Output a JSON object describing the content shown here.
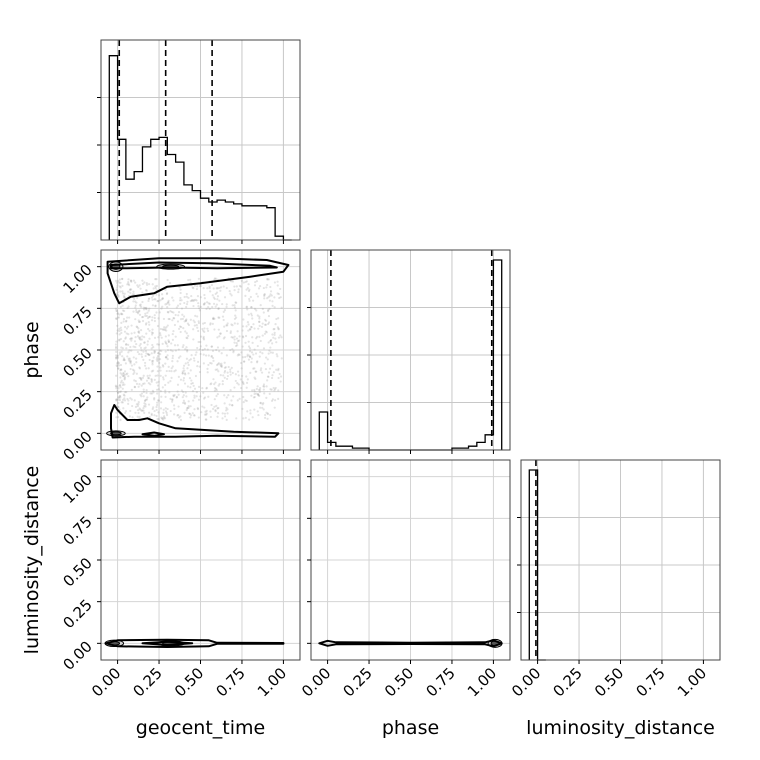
{
  "chart_data": {
    "type": "corner",
    "parameters": [
      "geocent_time",
      "phase",
      "luminosity_distance"
    ],
    "axis_labels": {
      "geocent_time": "geocent_time",
      "phase": "phase",
      "luminosity_distance": "luminosity_distance"
    },
    "range": [
      -0.1,
      1.1
    ],
    "tick_values": [
      0.0,
      0.25,
      0.5,
      0.75,
      1.0
    ],
    "tick_labels": [
      "0.00",
      "0.25",
      "0.50",
      "0.75",
      "1.00"
    ],
    "grid": true,
    "line_color": "#000000",
    "scatter_color": "#9e9e9e",
    "contour_fill_colors": [
      "#ededed",
      "#cfcfcf",
      "#a8a8a8",
      "#555555"
    ],
    "marginals": {
      "geocent_time": {
        "bin_edges": [
          -0.05,
          0.0,
          0.05,
          0.1,
          0.15,
          0.2,
          0.25,
          0.3,
          0.35,
          0.4,
          0.45,
          0.5,
          0.55,
          0.6,
          0.65,
          0.7,
          0.75,
          0.8,
          0.85,
          0.9,
          0.95,
          1.0,
          1.05
        ],
        "counts": [
          0.97,
          0.53,
          0.32,
          0.36,
          0.49,
          0.53,
          0.54,
          0.45,
          0.41,
          0.29,
          0.26,
          0.22,
          0.2,
          0.21,
          0.2,
          0.19,
          0.18,
          0.18,
          0.18,
          0.17,
          0.02,
          0.0
        ],
        "ylim": [
          0,
          1.0
        ],
        "quantiles": [
          0.01,
          0.29,
          0.57
        ]
      },
      "phase": {
        "bin_edges": [
          -0.05,
          0.0,
          0.05,
          0.1,
          0.15,
          0.2,
          0.25,
          0.3,
          0.35,
          0.4,
          0.45,
          0.5,
          0.55,
          0.6,
          0.65,
          0.7,
          0.75,
          0.8,
          0.85,
          0.9,
          0.95,
          1.0,
          1.05
        ],
        "counts": [
          0.2,
          0.04,
          0.02,
          0.02,
          0.01,
          0.01,
          0.0,
          0.0,
          0.0,
          0.0,
          0.0,
          0.0,
          0.0,
          0.0,
          0.0,
          0.0,
          0.01,
          0.01,
          0.02,
          0.04,
          0.08,
          1.0
        ],
        "ylim": [
          0,
          1.0
        ],
        "quantiles": [
          0.02,
          0.99
        ]
      },
      "luminosity_distance": {
        "bin_edges": [
          -0.05,
          0.0,
          0.05
        ],
        "counts": [
          1.0,
          0.0
        ],
        "ylim": [
          0,
          1.0
        ],
        "quantiles": [
          -0.01
        ]
      }
    },
    "pairs": [
      {
        "x": "geocent_time",
        "y": "phase",
        "contours": [
          [
            [
              -0.06,
              1.03
            ],
            [
              0.25,
              1.05
            ],
            [
              0.6,
              1.05
            ],
            [
              0.9,
              1.04
            ],
            [
              1.03,
              1.01
            ],
            [
              1.0,
              0.97
            ],
            [
              0.8,
              0.94
            ],
            [
              0.5,
              0.9
            ],
            [
              0.3,
              0.88
            ],
            [
              0.22,
              0.84
            ],
            [
              0.08,
              0.82
            ],
            [
              0.01,
              0.78
            ],
            [
              -0.02,
              0.84
            ],
            [
              -0.06,
              0.96
            ]
          ],
          [
            [
              -0.04,
              1.01
            ],
            [
              0.25,
              1.025
            ],
            [
              0.55,
              1.02
            ],
            [
              0.92,
              1.005
            ],
            [
              0.96,
              0.995
            ],
            [
              0.6,
              0.99
            ],
            [
              0.3,
              0.995
            ],
            [
              0.05,
              0.99
            ],
            [
              -0.04,
              0.99
            ]
          ],
          [
            [
              -0.03,
              -0.025
            ],
            [
              0.1,
              -0.02
            ],
            [
              0.35,
              -0.02
            ],
            [
              0.6,
              -0.015
            ],
            [
              0.95,
              -0.02
            ],
            [
              0.97,
              0.0
            ],
            [
              0.7,
              0.01
            ],
            [
              0.35,
              0.03
            ],
            [
              0.25,
              0.06
            ],
            [
              0.18,
              0.09
            ],
            [
              0.13,
              0.08
            ],
            [
              0.06,
              0.08
            ],
            [
              0.0,
              0.14
            ],
            [
              -0.02,
              0.17
            ],
            [
              -0.04,
              0.12
            ],
            [
              -0.04,
              0.03
            ]
          ],
          [
            [
              0.15,
              -0.005
            ],
            [
              0.22,
              -0.015
            ],
            [
              0.28,
              -0.005
            ],
            [
              0.22,
              0.005
            ]
          ]
        ],
        "dense_regions": [
          {
            "cx": 0.32,
            "cy": 1.0,
            "rx": 0.06,
            "ry": 0.008
          },
          {
            "cx": -0.01,
            "cy": 1.0,
            "rx": 0.03,
            "ry": 0.018
          },
          {
            "cx": -0.01,
            "cy": 0.0,
            "rx": 0.04,
            "ry": 0.007
          }
        ],
        "scatter_y_range": [
          0.08,
          0.93
        ]
      },
      {
        "x": "geocent_time",
        "y": "luminosity_distance",
        "contours": [
          [
            [
              -0.07,
              0.0
            ],
            [
              0.0,
              0.018
            ],
            [
              0.3,
              0.022
            ],
            [
              0.55,
              0.018
            ],
            [
              0.6,
              0.003
            ],
            [
              1.0,
              0.002
            ],
            [
              1.0,
              -0.002
            ],
            [
              0.6,
              -0.003
            ],
            [
              0.55,
              -0.018
            ],
            [
              0.3,
              -0.022
            ],
            [
              0.0,
              -0.018
            ]
          ],
          [
            [
              0.15,
              0.0
            ],
            [
              0.3,
              0.01
            ],
            [
              0.45,
              0.0
            ],
            [
              0.3,
              -0.01
            ]
          ]
        ],
        "dense_regions": [
          {
            "cx": -0.02,
            "cy": 0.0,
            "rx": 0.04,
            "ry": 0.012
          },
          {
            "cx": 0.32,
            "cy": 0.0,
            "rx": 0.06,
            "ry": 0.005
          }
        ]
      },
      {
        "x": "phase",
        "y": "luminosity_distance",
        "contours": [
          [
            [
              -0.05,
              0.0
            ],
            [
              0.0,
              0.015
            ],
            [
              0.05,
              0.006
            ],
            [
              0.5,
              0.004
            ],
            [
              0.95,
              0.006
            ],
            [
              1.0,
              0.018
            ],
            [
              1.05,
              0.0
            ],
            [
              1.0,
              -0.018
            ],
            [
              0.95,
              -0.006
            ],
            [
              0.5,
              -0.004
            ],
            [
              0.05,
              -0.006
            ],
            [
              0.0,
              -0.015
            ]
          ]
        ],
        "dense_regions": [
          {
            "cx": 1.01,
            "cy": 0.0,
            "rx": 0.03,
            "ry": 0.015
          }
        ]
      }
    ]
  }
}
